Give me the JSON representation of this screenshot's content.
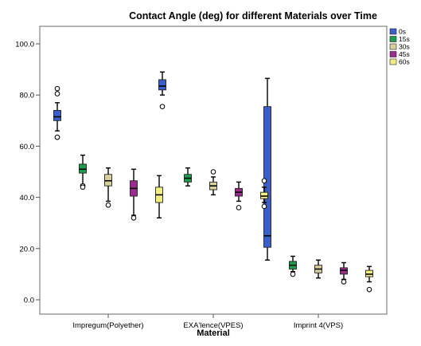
{
  "chart_data": {
    "type": "boxplot",
    "title": "Contact Angle (deg) for different Materials over Time",
    "xlabel": "Material",
    "ylabel": "",
    "ylim": [
      -5,
      105
    ],
    "yticks": [
      0,
      20,
      40,
      60,
      80,
      100
    ],
    "ytick_labels": [
      "0.0",
      "20.0",
      "40.0",
      "60.0",
      "80.0",
      "100.0"
    ],
    "grid": false,
    "legend_position": "top-right",
    "categories": [
      "Impregum(Polyether)",
      "EXA'lence(VPES)",
      "Imprint 4(VPS)"
    ],
    "series": [
      {
        "name": "0s",
        "color": "#3a5fcd",
        "boxes": [
          {
            "whisker_low": 66,
            "q1": 70,
            "median": 71.5,
            "q3": 74,
            "whisker_high": 77,
            "outliers": [
              63.5,
              63.5,
              80.5,
              82.5
            ]
          },
          {
            "whisker_low": 80,
            "q1": 82,
            "median": 83.5,
            "q3": 86,
            "whisker_high": 89,
            "outliers": [
              75.5
            ]
          },
          {
            "whisker_low": 15.5,
            "q1": 20.5,
            "median": 25,
            "q3": 75.5,
            "whisker_high": 86.5,
            "outliers": []
          }
        ]
      },
      {
        "name": "15s",
        "color": "#1e9e4a",
        "boxes": [
          {
            "whisker_low": 45,
            "q1": 49.5,
            "median": 51,
            "q3": 53,
            "whisker_high": 56.5,
            "outliers": [
              44.5,
              44
            ]
          },
          {
            "whisker_low": 44.5,
            "q1": 46,
            "median": 47.5,
            "q3": 49,
            "whisker_high": 51.5,
            "outliers": []
          },
          {
            "whisker_low": 11,
            "q1": 12,
            "median": 13.5,
            "q3": 15,
            "whisker_high": 17,
            "outliers": [
              10
            ]
          }
        ]
      },
      {
        "name": "30s",
        "color": "#d8cf9a",
        "boxes": [
          {
            "whisker_low": 38.5,
            "q1": 44.5,
            "median": 46.5,
            "q3": 49,
            "whisker_high": 51.5,
            "outliers": [
              37
            ]
          },
          {
            "whisker_low": 41,
            "q1": 43,
            "median": 44.5,
            "q3": 46,
            "whisker_high": 48,
            "outliers": [
              50
            ]
          },
          {
            "whisker_low": 8.5,
            "q1": 10.5,
            "median": 12,
            "q3": 13.5,
            "whisker_high": 15.5,
            "outliers": []
          }
        ]
      },
      {
        "name": "45s",
        "color": "#9b2c8f",
        "boxes": [
          {
            "whisker_low": 33,
            "q1": 40.5,
            "median": 43.5,
            "q3": 46.5,
            "whisker_high": 51,
            "outliers": [
              32
            ]
          },
          {
            "whisker_low": 38.5,
            "q1": 40.5,
            "median": 42,
            "q3": 43.5,
            "whisker_high": 46,
            "outliers": [
              36
            ]
          },
          {
            "whisker_low": 8,
            "q1": 10,
            "median": 11.5,
            "q3": 12.5,
            "whisker_high": 14.5,
            "outliers": [
              7
            ]
          }
        ]
      },
      {
        "name": "60s",
        "color": "#f3ee82",
        "boxes": [
          {
            "whisker_low": 32,
            "q1": 38,
            "median": 41,
            "q3": 44,
            "whisker_high": 48.5,
            "outliers": []
          },
          {
            "whisker_low": 38,
            "q1": 39.5,
            "median": 40.5,
            "q3": 42,
            "whisker_high": 44,
            "outliers": [
              36.5,
              46.5
            ]
          },
          {
            "whisker_low": 7,
            "q1": 9,
            "median": 10,
            "q3": 11.5,
            "whisker_high": 13,
            "outliers": [
              4
            ]
          }
        ]
      }
    ]
  }
}
